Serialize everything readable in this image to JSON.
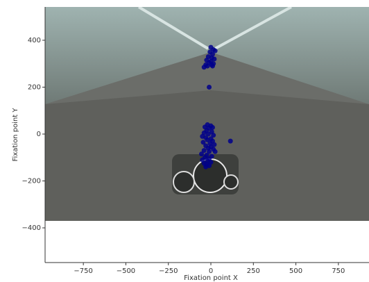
{
  "chart_data": {
    "type": "scatter",
    "xlabel": "Fixation point X",
    "ylabel": "Fixation point Y",
    "color": "#00008b",
    "x": [
      0,
      15,
      -5,
      25,
      10,
      -15,
      5,
      20,
      -25,
      0,
      -10,
      15,
      -30,
      5,
      -40,
      -20,
      10,
      -10,
      -20,
      0,
      -35,
      -10,
      10,
      -25,
      5,
      -40,
      -15,
      15,
      -50,
      -30,
      0,
      -20,
      10,
      -45,
      -5,
      20,
      -30,
      0,
      -15,
      15,
      -40,
      -10,
      25,
      -55,
      -25,
      5,
      -35,
      -10,
      -50,
      -20,
      0,
      -40,
      -25,
      -10,
      -30,
      115
    ],
    "values": [
      370,
      360,
      350,
      355,
      340,
      330,
      325,
      320,
      315,
      310,
      305,
      300,
      295,
      295,
      285,
      290,
      290,
      200,
      40,
      35,
      30,
      25,
      28,
      15,
      10,
      5,
      0,
      -5,
      -10,
      -15,
      -20,
      -25,
      -30,
      -35,
      -40,
      -45,
      -50,
      -55,
      -60,
      -65,
      -70,
      -75,
      -75,
      -85,
      -90,
      -95,
      -100,
      -105,
      -110,
      -115,
      -120,
      -125,
      -130,
      -135,
      -140,
      -30
    ],
    "xlim": [
      -975,
      930
    ],
    "ylim": [
      -548,
      542
    ],
    "xticks": [
      {
        "value": -750,
        "label": "−750"
      },
      {
        "value": -500,
        "label": "−500"
      },
      {
        "value": -250,
        "label": "−250"
      },
      0,
      250,
      500,
      750
    ],
    "yticks": [
      {
        "value": -400,
        "label": "−400"
      },
      {
        "value": -200,
        "label": "−200"
      },
      0,
      200,
      400
    ]
  }
}
